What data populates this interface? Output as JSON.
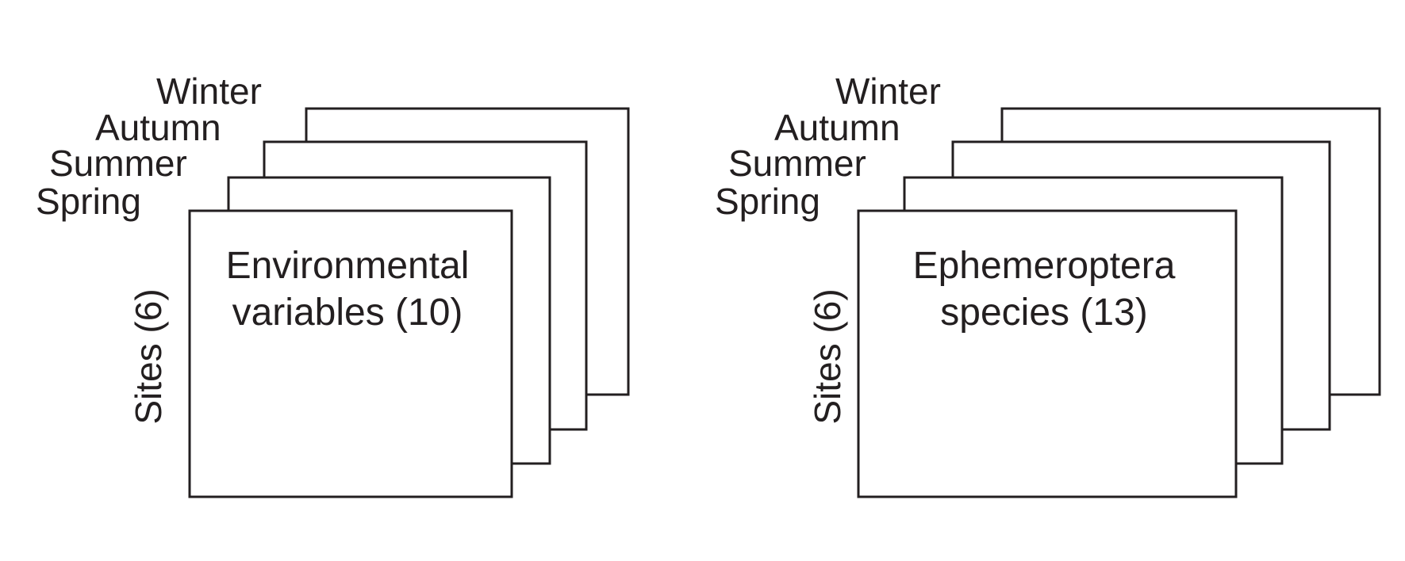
{
  "diagram": {
    "left": {
      "seasons": [
        "Spring",
        "Summer",
        "Autumn",
        "Winter"
      ],
      "rows_label": "Sites (6)",
      "content_line1": "Environmental",
      "content_line2": "variables (10)"
    },
    "right": {
      "seasons": [
        "Spring",
        "Summer",
        "Autumn",
        "Winter"
      ],
      "rows_label": "Sites (6)",
      "content_line1": "Ephemeroptera",
      "content_line2": "species (13)"
    }
  },
  "colors": {
    "stroke": "#231f20",
    "background": "#ffffff"
  }
}
